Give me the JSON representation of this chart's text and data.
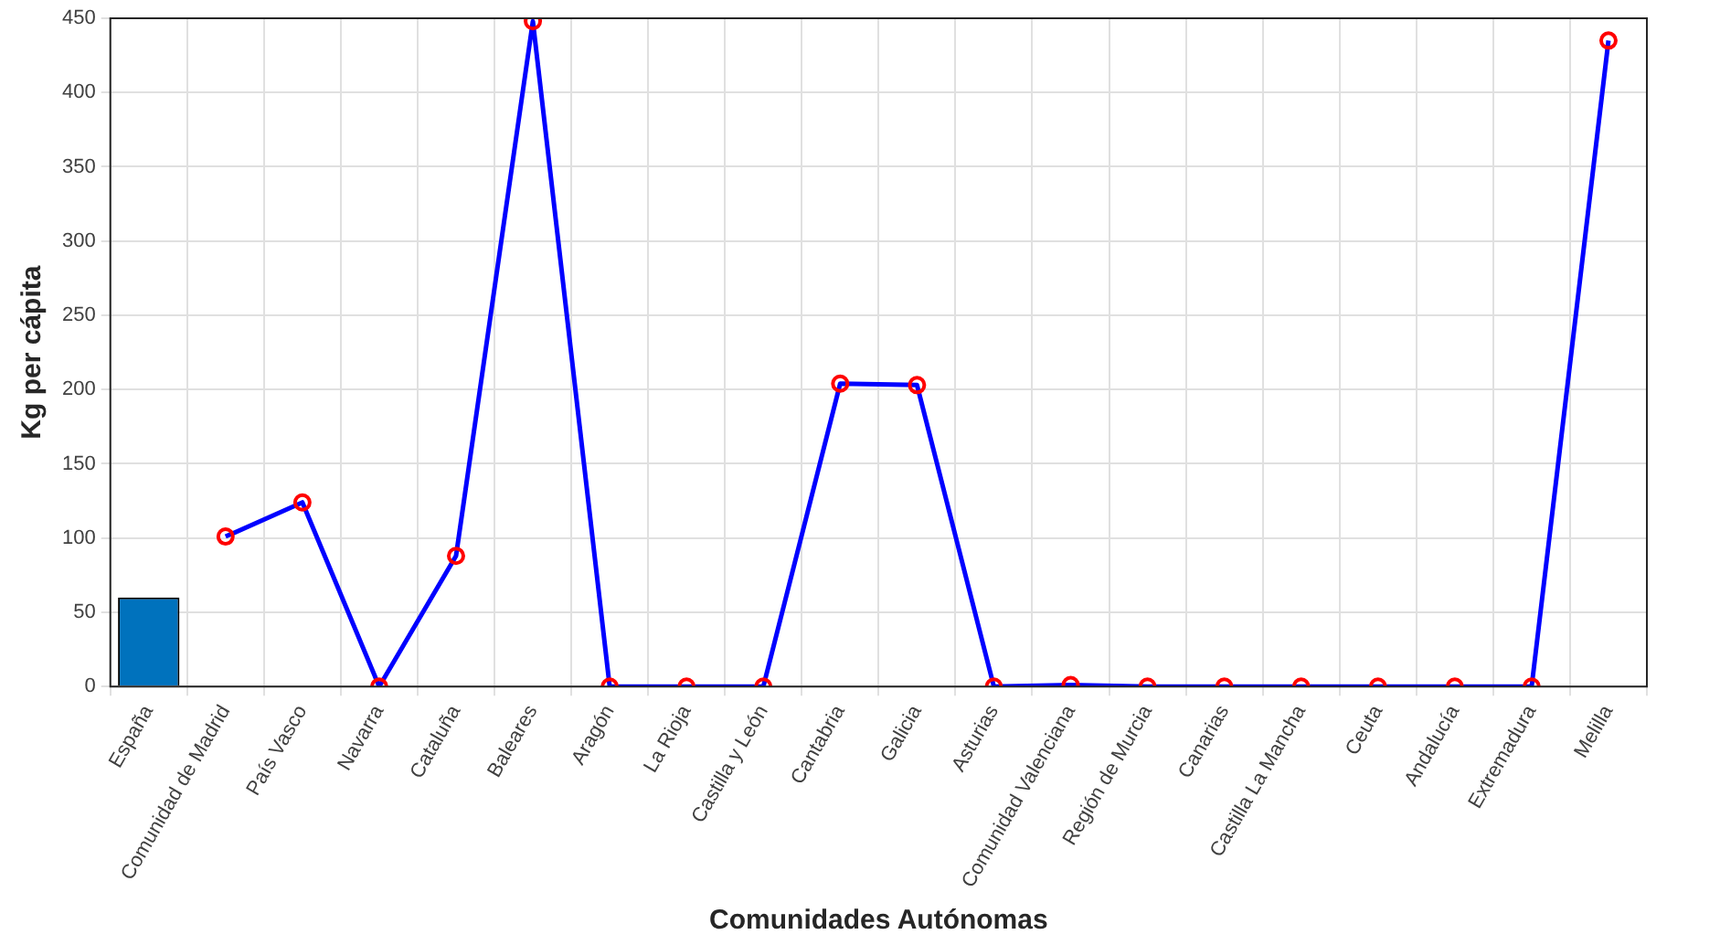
{
  "chart_data": {
    "type": "line",
    "xlabel": "Comunidades Autónomas",
    "ylabel": "Kg per cápita",
    "categories": [
      "España",
      "Comunidad de Madrid",
      "País Vasco",
      "Navarra",
      "Cataluña",
      "Baleares",
      "Aragón",
      "La Rioja",
      "Castilla y León",
      "Cantabria",
      "Galicia",
      "Asturias",
      "Comunidad Valenciana",
      "Región de Murcia",
      "Canarias",
      "Castilla La Mancha",
      "Ceuta",
      "Andalucía",
      "Extremadura",
      "Melilla"
    ],
    "series": [
      {
        "type": "bar",
        "color": "#0072bd",
        "values": [
          60,
          null,
          null,
          null,
          null,
          null,
          null,
          null,
          null,
          null,
          null,
          null,
          null,
          null,
          null,
          null,
          null,
          null,
          null,
          null
        ]
      },
      {
        "color": "#0000ff",
        "marker": "circle",
        "colors": [
          null,
          "#ff0000",
          "#ff0000",
          "#ff0000",
          "#ff0000",
          "#ff0000",
          "#ff0000",
          "#ff0000",
          "#ff0000",
          "#ff0000",
          "#ff0000",
          "#ff0000",
          "#ff0000",
          "#ff0000",
          "#ff0000",
          "#ff0000",
          "#ff0000",
          "#ff0000",
          "#ff0000",
          "#ff0000"
        ],
        "values": [
          null,
          101,
          124,
          0,
          88,
          448,
          0,
          0,
          0,
          204,
          203,
          0,
          1,
          0,
          0,
          0,
          0,
          0,
          0,
          435
        ]
      }
    ],
    "ylim": [
      0,
      450
    ],
    "yticks": [
      0,
      50,
      100,
      150,
      200,
      250,
      300,
      350,
      400,
      450
    ],
    "grid": true,
    "legend": false
  }
}
